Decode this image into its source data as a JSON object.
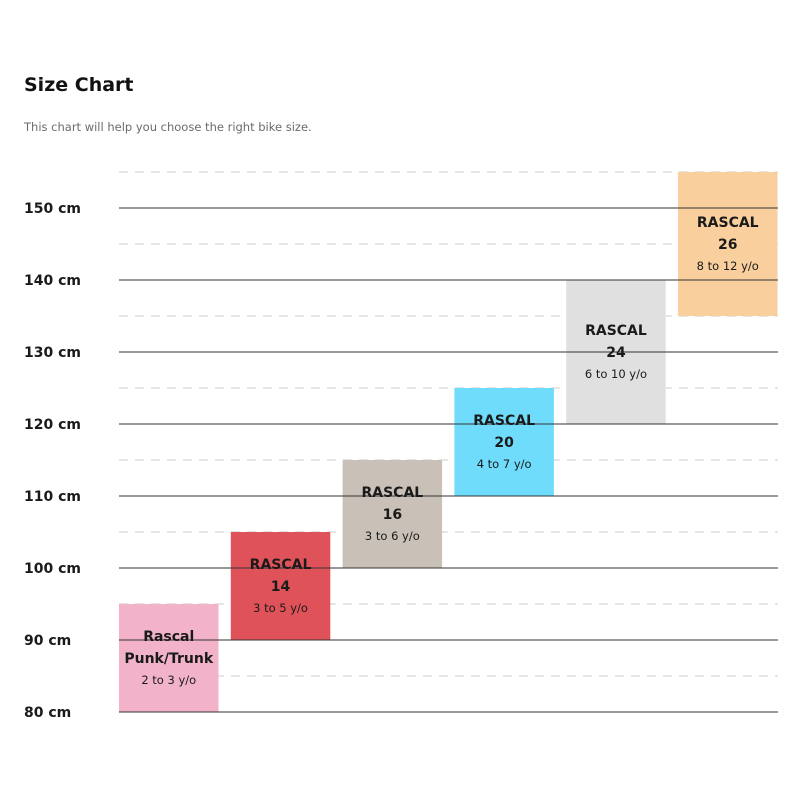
{
  "page": {
    "title": "Size Chart",
    "subtitle": "This chart will help you choose the right bike size."
  },
  "chart_data": {
    "type": "bar",
    "subtype": "floating-range",
    "title": "Size Chart",
    "subtitle": "This chart will help you choose the right bike size.",
    "y_unit": "cm",
    "ylim": [
      80,
      155
    ],
    "y_ticks": [
      80,
      90,
      100,
      110,
      120,
      130,
      140,
      150
    ],
    "y_tick_labels": [
      "80 cm",
      "90 cm",
      "100 cm",
      "110 cm",
      "120 cm",
      "130 cm",
      "140 cm",
      "150 cm"
    ],
    "grid": "solid lines at every 10 cm, dashed lines halfway between",
    "bars": [
      {
        "lines": [
          "Rascal",
          "Punk/Trunk"
        ],
        "age": "2 to 3 y/o",
        "low": 80,
        "high": 95,
        "color": "#f2b3ca"
      },
      {
        "lines": [
          "RASCAL",
          "14"
        ],
        "age": "3 to 5 y/o",
        "low": 90,
        "high": 105,
        "color": "#e05259"
      },
      {
        "lines": [
          "RASCAL",
          "16"
        ],
        "age": "3 to 6 y/o",
        "low": 100,
        "high": 115,
        "color": "#c9c1b7"
      },
      {
        "lines": [
          "RASCAL",
          "20"
        ],
        "age": "4 to 7 y/o",
        "low": 110,
        "high": 125,
        "color": "#6fdcfb"
      },
      {
        "lines": [
          "RASCAL",
          "24"
        ],
        "age": "6 to 10 y/o",
        "low": 120,
        "high": 140,
        "color": "#e0e0e0"
      },
      {
        "lines": [
          "RASCAL",
          "26"
        ],
        "age": "8 to 12 y/o",
        "low": 135,
        "high": 155,
        "color": "#f8cf9d"
      }
    ]
  }
}
